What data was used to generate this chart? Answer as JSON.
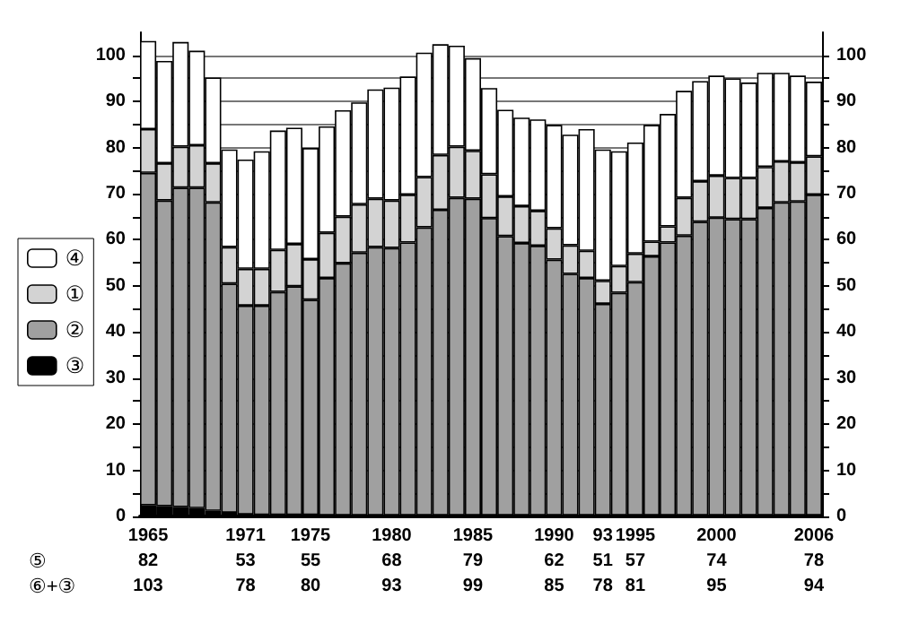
{
  "chart_data": {
    "type": "bar",
    "stacked": true,
    "categories": [
      "1965",
      null,
      null,
      null,
      null,
      null,
      "1971",
      null,
      null,
      null,
      "1975",
      null,
      null,
      null,
      null,
      "1980",
      null,
      null,
      null,
      null,
      "1985",
      null,
      null,
      null,
      null,
      "1990",
      null,
      null,
      "93",
      null,
      "1995",
      null,
      null,
      null,
      null,
      "2000",
      null,
      null,
      null,
      null,
      null,
      "2006"
    ],
    "series": [
      {
        "name": "③",
        "color": "#000000",
        "values": [
          2.4,
          2.2,
          2.0,
          1.8,
          1.2,
          0.8,
          0.4,
          0.3,
          0.3,
          0.3,
          0.3,
          0.2,
          0.2,
          0.2,
          0.2,
          0.2,
          0.2,
          0.2,
          0.2,
          0.2,
          0.2,
          0.2,
          0.2,
          0.2,
          0.2,
          0.2,
          0.2,
          0.2,
          0.2,
          0.2,
          0.2,
          0.2,
          0.2,
          0.2,
          0.2,
          0.2,
          0.2,
          0.2,
          0.2,
          0.2,
          0.2,
          0.2
        ]
      },
      {
        "name": "②",
        "color": "#a0a0a0",
        "values": [
          72.1,
          66.3,
          69.3,
          69.5,
          66.9,
          49.7,
          45.3,
          45.4,
          48.4,
          49.6,
          46.7,
          51.5,
          54.7,
          57.0,
          58.2,
          58.0,
          59.2,
          62.5,
          66.3,
          68.9,
          68.7,
          64.5,
          60.6,
          59.1,
          58.5,
          55.5,
          52.4,
          51.5,
          45.9,
          48.3,
          50.6,
          56.2,
          59.2,
          60.7,
          63.7,
          64.6,
          64.3,
          64.3,
          66.7,
          67.9,
          68.1,
          69.6
        ]
      },
      {
        "name": "①",
        "color": "#d3d3d3",
        "values": [
          9.5,
          8.1,
          8.9,
          9.2,
          8.5,
          7.9,
          8.0,
          8.0,
          9.1,
          9.2,
          8.8,
          9.8,
          10.1,
          10.5,
          10.5,
          10.3,
          10.4,
          10.9,
          11.9,
          11.1,
          10.4,
          9.5,
          8.6,
          8.0,
          7.6,
          6.8,
          6.2,
          5.9,
          5.0,
          5.8,
          6.2,
          3.2,
          3.5,
          8.2,
          8.8,
          9.1,
          8.9,
          8.9,
          8.9,
          8.9,
          8.5,
          8.3
        ]
      },
      {
        "name": "④",
        "color": "#ffffff",
        "values": [
          19.1,
          22.2,
          22.7,
          20.5,
          18.6,
          21.2,
          23.7,
          25.5,
          25.9,
          25.2,
          24.1,
          23.1,
          23.1,
          22.1,
          23.7,
          24.5,
          25.6,
          27.0,
          24.0,
          21.9,
          20.1,
          18.7,
          18.8,
          19.2,
          19.8,
          22.4,
          24.0,
          26.4,
          28.5,
          24.9,
          24.1,
          25.3,
          24.4,
          23.2,
          21.7,
          21.7,
          21.6,
          20.7,
          20.4,
          19.2,
          18.8,
          16.2
        ]
      }
    ],
    "annotations": [
      "⑤",
      "82",
      "53",
      "55",
      "68",
      "79",
      "62",
      "51",
      "57",
      "74",
      "78",
      "⑥+③",
      "103",
      "78",
      "80",
      "93",
      "99",
      "85",
      "78",
      "81",
      "95",
      "94"
    ],
    "ylim": [
      0,
      105
    ],
    "yticks": [
      0,
      {
        "value": 5,
        "label": null
      },
      10,
      {
        "value": 15,
        "label": null
      },
      20,
      {
        "value": 25,
        "label": null
      },
      30,
      {
        "value": 35,
        "label": null
      },
      40,
      {
        "value": 45,
        "label": null
      },
      50,
      {
        "value": 55,
        "label": null
      },
      60,
      {
        "value": 65,
        "label": null
      },
      70,
      {
        "value": 75,
        "label": null
      },
      80,
      {
        "value": 85,
        "label": null
      },
      90,
      {
        "value": 95,
        "label": null
      },
      100
    ],
    "y2lim": [
      0,
      105
    ],
    "y2ticks": [
      0,
      {
        "value": 5,
        "label": null
      },
      10,
      {
        "value": 15,
        "label": null
      },
      20,
      {
        "value": 25,
        "label": null
      },
      30,
      {
        "value": 35,
        "label": null
      },
      40,
      {
        "value": 45,
        "label": null
      },
      50,
      {
        "value": 55,
        "label": null
      },
      60,
      {
        "value": 65,
        "label": null
      },
      70,
      {
        "value": 75,
        "label": null
      },
      80,
      {
        "value": 85,
        "label": null
      },
      90,
      {
        "value": 95,
        "label": null
      },
      100
    ],
    "grid": "y",
    "legend": "left"
  }
}
